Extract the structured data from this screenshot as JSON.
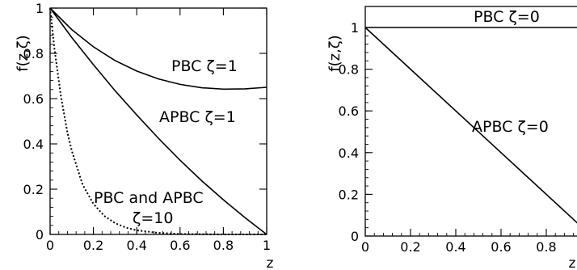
{
  "chart_data": [
    {
      "type": "line",
      "ylabel": "f(z,ζ)",
      "xlabel": "z",
      "xlim": [
        0,
        1
      ],
      "ylim": [
        0,
        1
      ],
      "x_ticks": [
        "0",
        "0.2",
        "0.4",
        "0.6",
        "0.8",
        "1"
      ],
      "y_ticks": [
        "0",
        "0.2",
        "0.4",
        "0.6",
        "0.8",
        "1"
      ],
      "grid": false,
      "series": [
        {
          "name": "PBC ζ=1",
          "style": "solid",
          "x": [
            0,
            0.1,
            0.2,
            0.3,
            0.4,
            0.5,
            0.6,
            0.7,
            0.8,
            0.9,
            1.0
          ],
          "values": [
            1.0,
            0.905,
            0.829,
            0.768,
            0.722,
            0.687,
            0.663,
            0.648,
            0.642,
            0.643,
            0.65
          ]
        },
        {
          "name": "APBC ζ=1",
          "style": "solid",
          "x": [
            0,
            0.1,
            0.2,
            0.3,
            0.4,
            0.5,
            0.6,
            0.7,
            0.8,
            0.9,
            1.0
          ],
          "values": [
            1.0,
            0.87,
            0.75,
            0.635,
            0.528,
            0.425,
            0.328,
            0.237,
            0.153,
            0.074,
            0.0
          ]
        },
        {
          "name": "PBC and APBC ζ=10",
          "style": "dotted",
          "x": [
            0,
            0.02,
            0.05,
            0.08,
            0.1,
            0.15,
            0.2,
            0.25,
            0.3,
            0.35,
            0.4,
            0.5,
            0.6,
            0.7,
            0.8,
            1.0
          ],
          "values": [
            1.0,
            0.82,
            0.61,
            0.45,
            0.37,
            0.22,
            0.135,
            0.082,
            0.05,
            0.03,
            0.018,
            0.007,
            0.002,
            0.001,
            0.0,
            0.0
          ]
        }
      ],
      "annotations": [
        "PBC ζ=1",
        "APBC ζ=1",
        "PBC and APBC",
        "ζ=10"
      ]
    },
    {
      "type": "line",
      "ylabel": "f(z,ζ)",
      "xlabel": "z",
      "xlim": [
        0,
        1
      ],
      "ylim": [
        0,
        1
      ],
      "x_ticks": [
        "0",
        "0.2",
        "0.4",
        "0.6",
        "0.8"
      ],
      "y_ticks": [
        "0",
        "0.2",
        "0.4",
        "0.6",
        "0.8",
        "1"
      ],
      "grid": false,
      "series": [
        {
          "name": "PBC ζ=0",
          "style": "solid",
          "x": [
            0,
            1
          ],
          "values": [
            1,
            1
          ]
        },
        {
          "name": "APBC ζ=0",
          "style": "solid",
          "x": [
            0,
            1
          ],
          "values": [
            1,
            0
          ]
        }
      ],
      "annotations": [
        "PBC ζ=0",
        "APBC ζ=0"
      ]
    }
  ]
}
